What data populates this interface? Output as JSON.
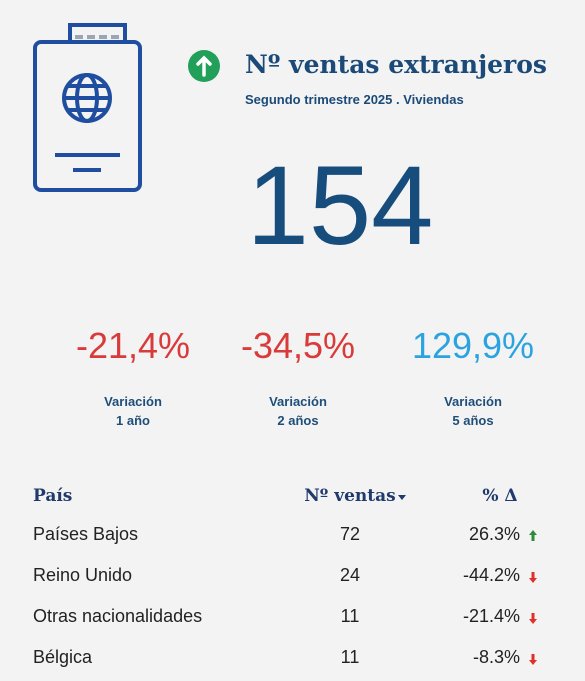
{
  "header": {
    "title": "Nº ventas extranjeros",
    "subtitle": "Segundo trimestre 2025 . Viviendas"
  },
  "kpi": {
    "value": "154"
  },
  "variations": [
    {
      "value": "-21,4%",
      "label": "Variación",
      "period": "1 año"
    },
    {
      "value": "-34,5%",
      "label": "Variación",
      "period": "2 años"
    },
    {
      "value": "129,9%",
      "label": "Variación",
      "period": "5 años"
    }
  ],
  "table": {
    "columns": [
      "País",
      "Nº ventas",
      "% Δ"
    ],
    "rows": [
      [
        "Países Bajos",
        "72",
        "26.3%"
      ],
      [
        "Reino Unido",
        "24",
        "-44.2%"
      ],
      [
        "Otras nacionalidades",
        "11",
        "-21.4%"
      ],
      [
        "Bélgica",
        "11",
        "-8.3%"
      ]
    ]
  }
}
